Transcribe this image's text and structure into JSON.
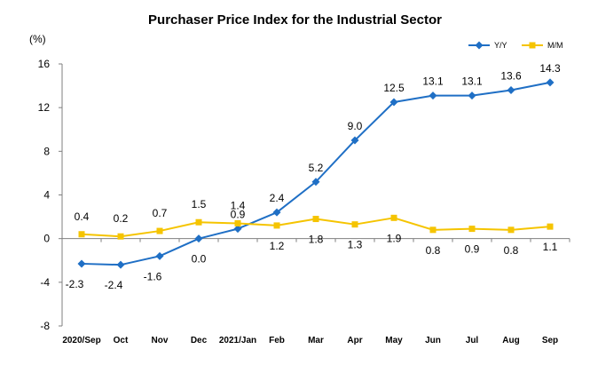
{
  "chart_data": {
    "type": "line",
    "title": "Purchaser Price Index for the Industrial  Sector",
    "ylabel": "(%)",
    "ylim": [
      -8,
      16
    ],
    "yticks": [
      -8,
      -4,
      0,
      4,
      8,
      12,
      16
    ],
    "categories": [
      "2020/Sep",
      "Oct",
      "Nov",
      "Dec",
      "2021/Jan",
      "Feb",
      "Mar",
      "Apr",
      "May",
      "Jun",
      "Jul",
      "Aug",
      "Sep"
    ],
    "series": [
      {
        "name": "Y/Y",
        "color": "#1f6fc5",
        "marker": "diamond",
        "values": [
          -2.3,
          -2.4,
          -1.6,
          0.0,
          0.9,
          2.4,
          5.2,
          9.0,
          12.5,
          13.1,
          13.1,
          13.6,
          14.3
        ],
        "labels": [
          "-2.3",
          "-2.4",
          "-1.6",
          "0.0",
          "0.9",
          "2.4",
          "5.2",
          "9.0",
          "12.5",
          "13.1",
          "13.1",
          "13.6",
          "14.3"
        ]
      },
      {
        "name": "M/M",
        "color": "#f5c400",
        "marker": "square",
        "values": [
          0.4,
          0.2,
          0.7,
          1.5,
          1.4,
          1.2,
          1.8,
          1.3,
          1.9,
          0.8,
          0.9,
          0.8,
          1.1
        ],
        "labels": [
          "0.4",
          "0.2",
          "0.7",
          "1.5",
          "1.4",
          "1.2",
          "1.8",
          "1.3",
          "1.9",
          "0.8",
          "0.9",
          "0.8",
          "1.1"
        ]
      }
    ],
    "legend_position": "top-right",
    "grid": false
  }
}
